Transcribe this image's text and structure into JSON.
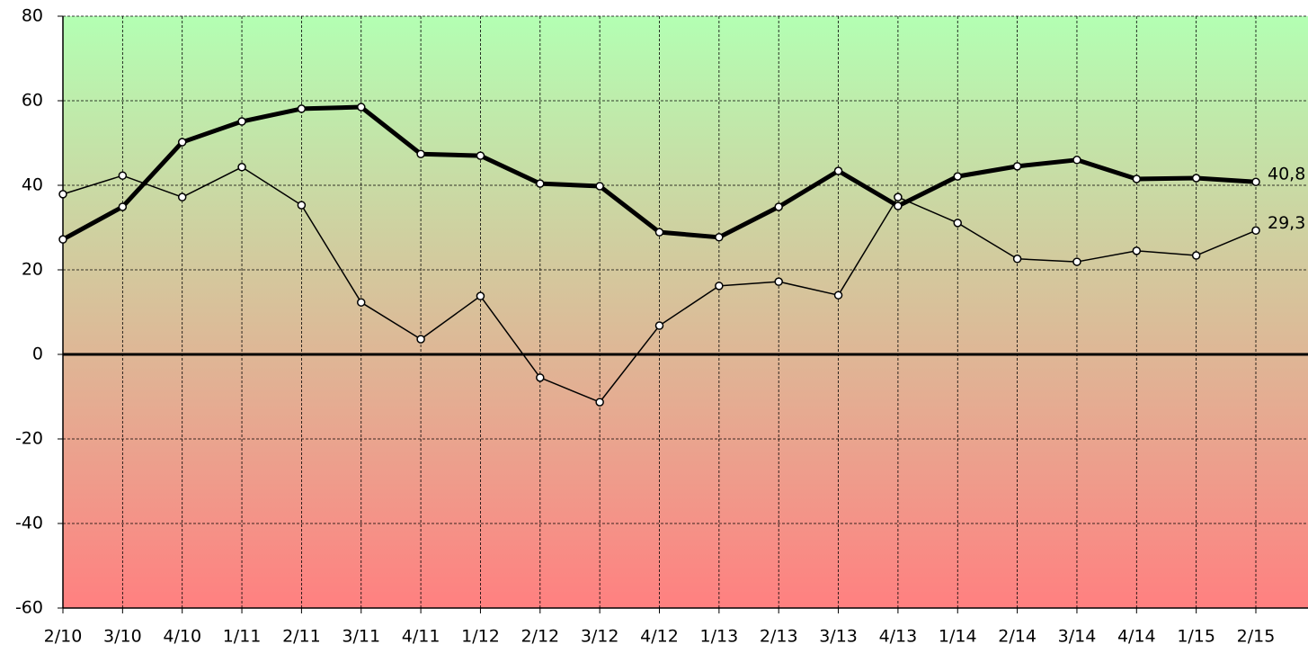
{
  "chart_data": {
    "type": "line",
    "categories": [
      "2/10",
      "3/10",
      "4/10",
      "1/11",
      "2/11",
      "3/11",
      "4/11",
      "1/12",
      "2/12",
      "3/12",
      "4/12",
      "1/13",
      "2/13",
      "3/13",
      "4/13",
      "1/14",
      "2/14",
      "3/14",
      "4/14",
      "1/15",
      "2/15"
    ],
    "series": [
      {
        "color": "#000000",
        "width": 5,
        "values": [
          27.2,
          34.9,
          50.2,
          55.1,
          58.1,
          58.5,
          47.4,
          47.0,
          40.4,
          39.8,
          28.9,
          27.7,
          34.9,
          43.4,
          35.1,
          42.1,
          44.5,
          46.0,
          41.5,
          41.7,
          40.8
        ],
        "value_labels": [
          null,
          null,
          null,
          null,
          null,
          null,
          null,
          null,
          null,
          null,
          null,
          null,
          null,
          null,
          null,
          null,
          null,
          null,
          null,
          null,
          "40,8"
        ]
      },
      {
        "color": "#000000",
        "width": 1.5,
        "values": [
          37.9,
          42.3,
          37.2,
          44.3,
          35.3,
          12.3,
          3.6,
          13.8,
          -5.5,
          -11.3,
          6.8,
          16.2,
          17.2,
          14.0,
          37.2,
          31.1,
          22.6,
          21.9,
          24.5,
          23.4,
          29.3
        ],
        "value_labels": [
          null,
          null,
          null,
          null,
          null,
          null,
          null,
          null,
          null,
          null,
          null,
          null,
          null,
          null,
          null,
          null,
          null,
          null,
          null,
          null,
          "29,3"
        ]
      }
    ],
    "ylim": [
      -60,
      80
    ],
    "yticks": [
      -60,
      -40,
      -20,
      0,
      20,
      40,
      60,
      80
    ],
    "grid": true,
    "background": [
      "#b3ffb3",
      "#ff8080"
    ]
  }
}
